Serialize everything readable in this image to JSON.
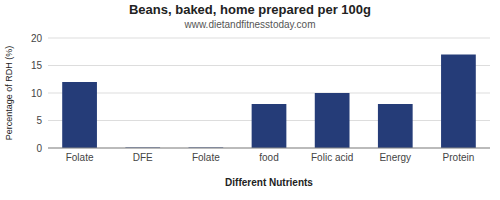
{
  "chart_data": {
    "type": "bar",
    "title": "Beans, baked, home prepared per 100g",
    "subtitle": "www.dietandfitnesstoday.com",
    "xlabel": "Different Nutrients",
    "ylabel": "Percentage of RDH (%)",
    "categories": [
      "Folate",
      "DFE",
      "Folate",
      "food",
      "Folic acid",
      "Energy",
      "Protein"
    ],
    "values": [
      12,
      0.1,
      0.1,
      8,
      10,
      8,
      17
    ],
    "color": "#253C78",
    "ylim": [
      0,
      20
    ],
    "yticks": [
      0,
      5,
      10,
      15,
      20
    ],
    "grid": true
  }
}
